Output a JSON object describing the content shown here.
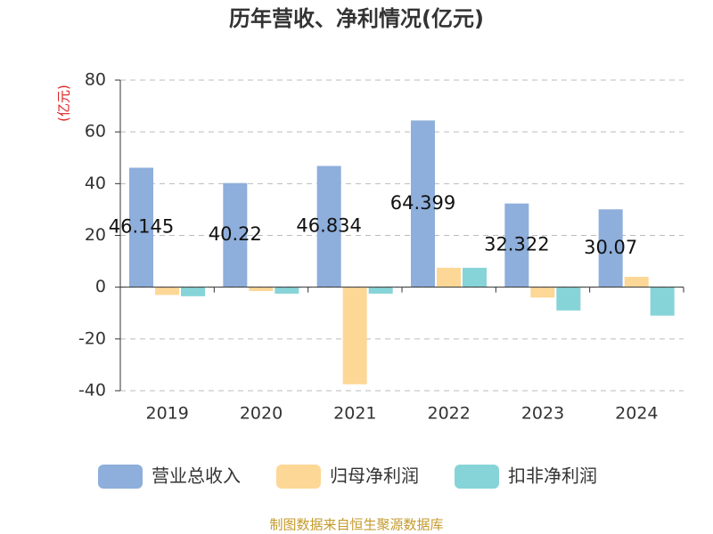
{
  "chart_data": {
    "type": "bar",
    "title": "历年营收、净利情况(亿元)",
    "y_label": "(亿元)",
    "categories": [
      "2019",
      "2020",
      "2021",
      "2022",
      "2023",
      "2024"
    ],
    "series": [
      {
        "name": "营业总收入",
        "color": "#8eaedb",
        "values": [
          46.145,
          40.22,
          46.834,
          64.399,
          32.322,
          30.07
        ],
        "show_labels": true
      },
      {
        "name": "归母净利润",
        "color": "#fdd796",
        "values": [
          -3,
          -1.5,
          -37.5,
          7.5,
          -4,
          4
        ]
      },
      {
        "name": "扣非净利润",
        "color": "#86d4d8",
        "values": [
          -3.5,
          -2.5,
          -2.5,
          7.5,
          -9,
          -11
        ]
      }
    ],
    "ylim": [
      -40,
      80
    ],
    "yticks": [
      -40,
      -20,
      0,
      20,
      40,
      60,
      80
    ],
    "grid": true,
    "source": "制图数据来自恒生聚源数据库"
  }
}
